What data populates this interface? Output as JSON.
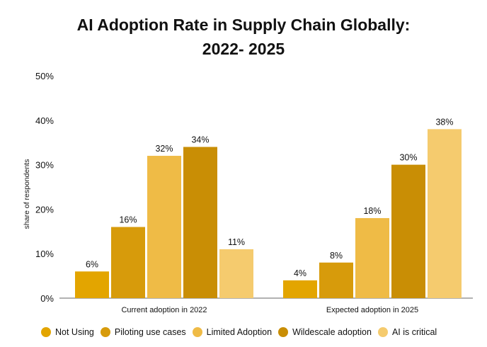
{
  "chart_data": {
    "type": "bar",
    "title_line1": "AI Adoption Rate in Supply Chain Globally:",
    "title_line2": "2022- 2025",
    "ylabel": "share of respondents",
    "xlabel": "",
    "ylim": [
      0,
      50
    ],
    "yticks": [
      0,
      10,
      20,
      30,
      40,
      50
    ],
    "ytick_labels": [
      "0%",
      "10%",
      "20%",
      "30%",
      "40%",
      "50%"
    ],
    "categories": [
      "Current adoption in 2022",
      "Expected adoption in 2025"
    ],
    "series": [
      {
        "name": "Not Using",
        "color": "#e3a500",
        "values": [
          6,
          4
        ],
        "labels": [
          "6%",
          "4%"
        ]
      },
      {
        "name": "Piloting use cases",
        "color": "#d79b0b",
        "values": [
          16,
          8
        ],
        "labels": [
          "16%",
          "8%"
        ]
      },
      {
        "name": "Limited Adoption",
        "color": "#efbb46",
        "values": [
          32,
          18
        ],
        "labels": [
          "32%",
          "18%"
        ]
      },
      {
        "name": "Wildescale adoption",
        "color": "#c98e05",
        "values": [
          34,
          30
        ],
        "labels": [
          "34%",
          "30%"
        ]
      },
      {
        "name": "AI is critical",
        "color": "#f5cb6e",
        "values": [
          11,
          38
        ],
        "labels": [
          "11%",
          "38%"
        ]
      }
    ],
    "grid": false,
    "legend": "bottom"
  }
}
